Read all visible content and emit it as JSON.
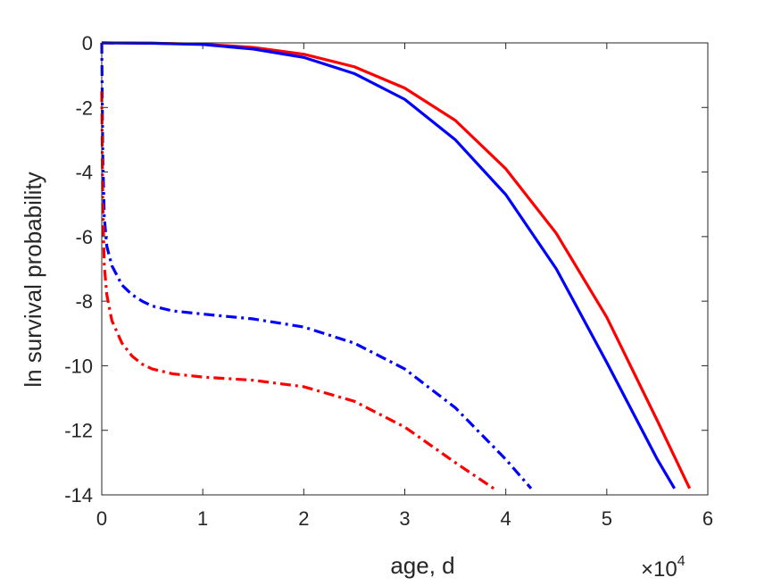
{
  "chart_data": {
    "type": "line",
    "title": "",
    "xlabel": "age, d",
    "ylabel": "ln survival probability",
    "x_multiplier": {
      "base": "×10",
      "exponent": "4"
    },
    "xlim": [
      0,
      60000
    ],
    "ylim": [
      -14,
      0
    ],
    "x_ticks": [
      0,
      10000,
      20000,
      30000,
      40000,
      50000,
      60000
    ],
    "x_tick_labels": [
      "0",
      "1",
      "2",
      "3",
      "4",
      "5",
      "6"
    ],
    "y_ticks": [
      0,
      -2,
      -4,
      -6,
      -8,
      -10,
      -12,
      -14
    ],
    "y_tick_labels": [
      "0",
      "-2",
      "-4",
      "-6",
      "-8",
      "-10",
      "-12",
      "-14"
    ],
    "grid": false,
    "series": [
      {
        "color": "#ff0000",
        "line_style": "solid",
        "x": [
          0,
          5000,
          10000,
          15000,
          20000,
          25000,
          30000,
          35000,
          40000,
          45000,
          50000,
          55000,
          58200
        ],
        "y": [
          0,
          -0.01,
          -0.04,
          -0.14,
          -0.35,
          -0.74,
          -1.4,
          -2.4,
          -3.9,
          -5.9,
          -8.5,
          -11.7,
          -13.8
        ]
      },
      {
        "color": "#0000ff",
        "line_style": "solid",
        "x": [
          0,
          5000,
          10000,
          15000,
          20000,
          25000,
          30000,
          35000,
          40000,
          45000,
          50000,
          55000,
          56700
        ],
        "y": [
          0,
          -0.01,
          -0.05,
          -0.19,
          -0.45,
          -0.95,
          -1.75,
          -3.0,
          -4.7,
          -7.0,
          -9.9,
          -12.9,
          -13.8
        ]
      },
      {
        "color": "#0000ff",
        "line_style": "dashdot",
        "x": [
          0,
          100,
          250,
          500,
          1000,
          2000,
          3000,
          4000,
          5000,
          7000,
          10000,
          15000,
          20000,
          25000,
          30000,
          35000,
          40000,
          42500
        ],
        "y": [
          0,
          -3.5,
          -5.4,
          -6.3,
          -6.9,
          -7.5,
          -7.8,
          -8.0,
          -8.15,
          -8.3,
          -8.4,
          -8.55,
          -8.8,
          -9.3,
          -10.1,
          -11.3,
          -12.9,
          -13.8
        ]
      },
      {
        "color": "#ff0000",
        "line_style": "dashdot",
        "x": [
          0,
          100,
          250,
          500,
          1000,
          2000,
          3000,
          4000,
          5000,
          7000,
          10000,
          15000,
          20000,
          25000,
          30000,
          35000,
          38800
        ],
        "y": [
          -1.5,
          -5.0,
          -6.9,
          -7.8,
          -8.6,
          -9.3,
          -9.7,
          -9.95,
          -10.1,
          -10.25,
          -10.35,
          -10.45,
          -10.65,
          -11.1,
          -11.9,
          -13.0,
          -13.8
        ]
      }
    ]
  }
}
